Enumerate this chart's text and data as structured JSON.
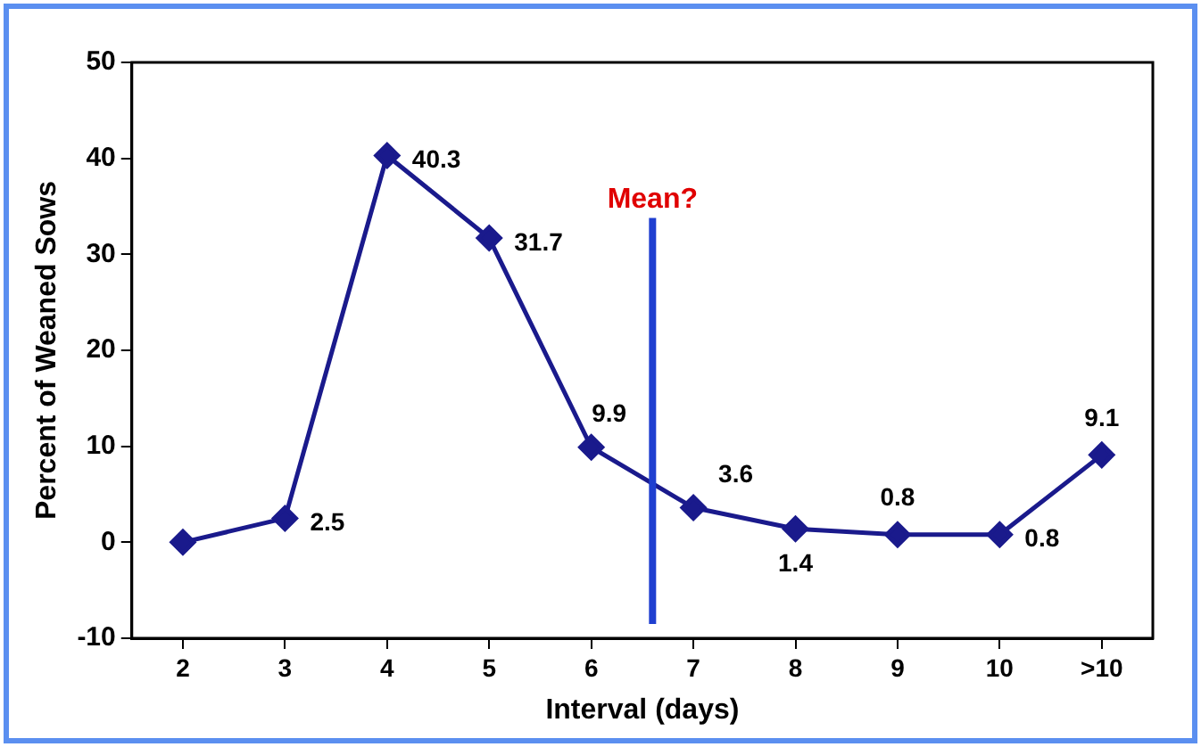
{
  "chart_data": {
    "type": "line",
    "xlabel": "Interval (days)",
    "ylabel": "Percent of Weaned Sows",
    "x": [
      2,
      3,
      4,
      5,
      6,
      7,
      8,
      9,
      10,
      11
    ],
    "series": [
      {
        "color": "#1a1a8c",
        "values": [
          0,
          2.5,
          40.3,
          31.7,
          9.9,
          3.6,
          1.4,
          0.8,
          0.8,
          9.1
        ],
        "value_labels": [
          null,
          "2.5",
          "40.3",
          "31.7",
          "9.9",
          "3.6",
          "1.4",
          "0.8",
          "0.8",
          "9.1"
        ]
      }
    ],
    "xlim": [
      1.5,
      11.5
    ],
    "xticks": [
      2,
      3,
      4,
      5,
      6,
      7,
      8,
      9,
      10,
      {
        "value": 11,
        "label": ">10"
      }
    ],
    "ylim": [
      -10,
      50
    ],
    "yticks": [
      -10,
      0,
      10,
      20,
      30,
      40,
      50
    ],
    "ref_lines": [
      {
        "axis": "x",
        "value": 6.6,
        "label": "Mean?",
        "color": "#1f3fd0"
      }
    ],
    "grid": false,
    "legend": false,
    "marker": "diamond",
    "line_style": "solid"
  }
}
